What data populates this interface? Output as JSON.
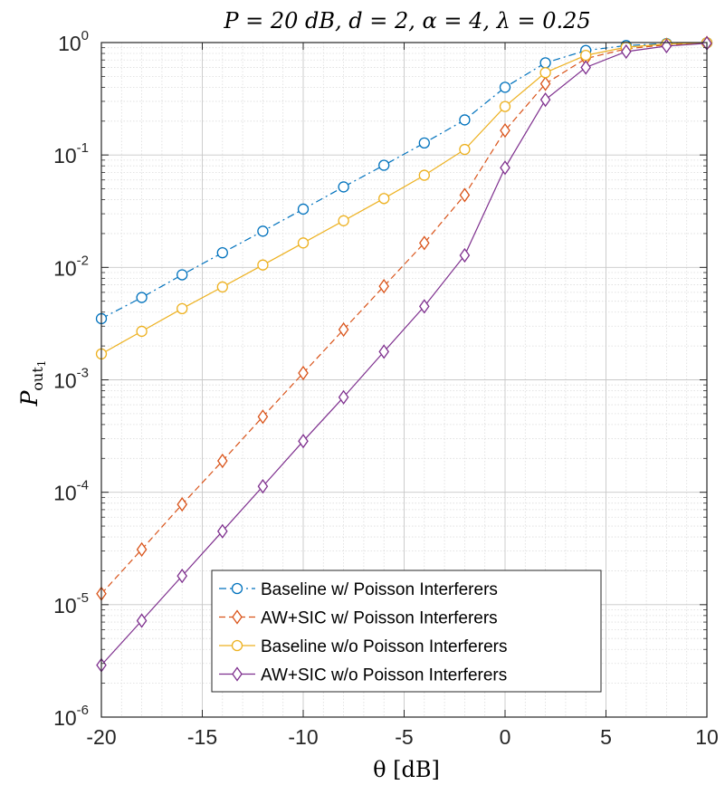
{
  "chart_data": {
    "type": "line",
    "title": "P = 20 dB, d = 2, α = 4, λ = 0.25",
    "xlabel": "θ [dB]",
    "ylabel": "P_out1",
    "ylabel_main": "P",
    "ylabel_sub": "out",
    "ylabel_subsub": "1",
    "x_scale": "linear",
    "y_scale": "log",
    "xlim": [
      -20,
      10
    ],
    "ylim": [
      1e-06,
      1
    ],
    "x_ticks": [
      -20,
      -15,
      -10,
      -5,
      0,
      5,
      10
    ],
    "x_tick_labels": [
      "-20",
      "-15",
      "-10",
      "-5",
      "0",
      "5",
      "10"
    ],
    "y_ticks": [
      1e-06,
      1e-05,
      0.0001,
      0.001,
      0.01,
      0.1,
      1
    ],
    "y_tick_labels": [
      {
        "base": "10",
        "exp": "-6"
      },
      {
        "base": "10",
        "exp": "-5"
      },
      {
        "base": "10",
        "exp": "-4"
      },
      {
        "base": "10",
        "exp": "-3"
      },
      {
        "base": "10",
        "exp": "-2"
      },
      {
        "base": "10",
        "exp": "-1"
      },
      {
        "base": "10",
        "exp": "0"
      }
    ],
    "grid": true,
    "minor_grid": true,
    "legend_position": "bottom-right",
    "x": [
      -20,
      -18,
      -16,
      -14,
      -12,
      -10,
      -8,
      -6,
      -4,
      -2,
      0,
      2,
      4,
      6,
      8,
      10
    ],
    "series": [
      {
        "name": "Baseline w/ Poisson Interferers",
        "color": "#0072bd",
        "line_style": "dashdot",
        "marker": "circle",
        "values": [
          0.0035,
          0.0054,
          0.0086,
          0.0135,
          0.021,
          0.033,
          0.052,
          0.081,
          0.128,
          0.205,
          0.4,
          0.66,
          0.85,
          0.94,
          0.98,
          0.995
        ]
      },
      {
        "name": "AW+SIC w/ Poisson Interferers",
        "color": "#d95319",
        "line_style": "dashed",
        "marker": "diamond",
        "values": [
          1.25e-05,
          3.1e-05,
          7.8e-05,
          0.00019,
          0.00047,
          0.00115,
          0.0028,
          0.0068,
          0.0165,
          0.044,
          0.165,
          0.43,
          0.72,
          0.88,
          0.955,
          0.99
        ]
      },
      {
        "name": "Baseline w/o Poisson Interferers",
        "color": "#edb120",
        "line_style": "solid",
        "marker": "circle",
        "values": [
          0.0017,
          0.0027,
          0.0043,
          0.0067,
          0.0105,
          0.0165,
          0.026,
          0.041,
          0.066,
          0.112,
          0.27,
          0.54,
          0.77,
          0.91,
          0.97,
          0.995
        ]
      },
      {
        "name": "AW+SIC w/o Poisson Interferers",
        "color": "#7e2f8e",
        "line_style": "solid",
        "marker": "diamond",
        "values": [
          2.9e-06,
          7.2e-06,
          1.8e-05,
          4.5e-05,
          0.000113,
          0.000285,
          0.0007,
          0.00178,
          0.0045,
          0.0128,
          0.077,
          0.31,
          0.6,
          0.83,
          0.93,
          0.985
        ]
      }
    ]
  }
}
